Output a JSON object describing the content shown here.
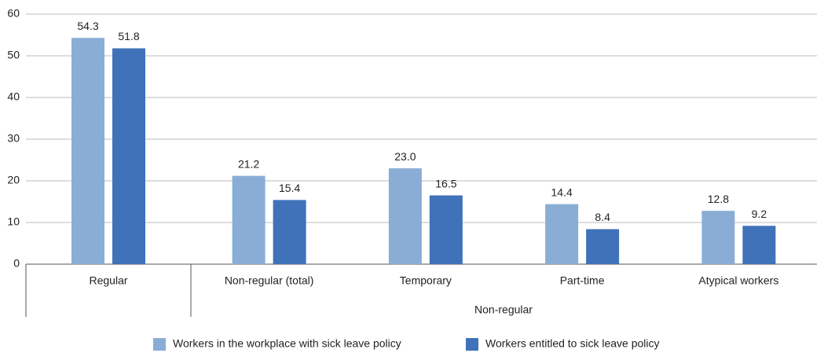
{
  "chart_data": {
    "type": "bar",
    "categories": [
      "Regular",
      "Non-regular (total)",
      "Temporary",
      "Part-time",
      "Atypical workers"
    ],
    "category_group": "Non-regular",
    "series": [
      {
        "name": "Workers in the workplace with sick leave policy",
        "color": "#8aadd6",
        "values": [
          54.3,
          21.2,
          23.0,
          14.4,
          12.8
        ],
        "value_labels": [
          "54.3",
          "21.2",
          "23.0",
          "14.4",
          "12.8"
        ]
      },
      {
        "name": "Workers entitled to sick leave policy",
        "color": "#3f72b9",
        "values": [
          51.8,
          15.4,
          16.5,
          8.4,
          9.2
        ],
        "value_labels": [
          "51.8",
          "15.4",
          "16.5",
          "8.4",
          "9.2"
        ]
      }
    ],
    "ylim": [
      0,
      60
    ],
    "yticks": [
      0,
      10,
      20,
      30,
      40,
      50,
      60
    ],
    "grid": true,
    "legend": "bottom"
  }
}
